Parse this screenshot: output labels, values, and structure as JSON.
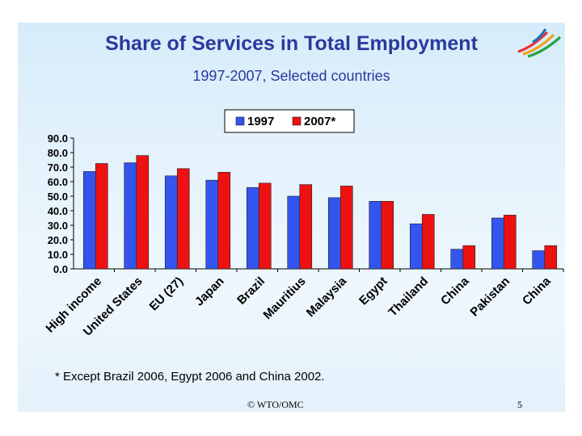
{
  "slide": {
    "title": "Share of Services in Total Employment",
    "subtitle": "1997-2007, Selected countries",
    "footnote": "* Except Brazil 2006, Egypt 2006 and China 2002.",
    "copyright": "© WTO/OMC",
    "page_number": "5",
    "logo_icon": "wto-logo-icon"
  },
  "colors": {
    "series_1997": "#3355ee",
    "series_2007": "#ee1111",
    "title": "#2a3a9c"
  },
  "chart_data": {
    "type": "bar",
    "title": "Share of Services in Total Employment",
    "xlabel": "",
    "ylabel": "",
    "ylim": [
      0,
      90
    ],
    "ytick_labels": [
      "0.0",
      "10.0",
      "20.0",
      "30.0",
      "40.0",
      "50.0",
      "60.0",
      "70.0",
      "80.0",
      "90.0"
    ],
    "legend_position": "top-center",
    "categories": [
      "High income",
      "United States",
      "EU (27)",
      "Japan",
      "Brazil",
      "Mauritius",
      "Malaysia",
      "Egypt",
      "Thailand",
      "China",
      "Pakistan",
      "China"
    ],
    "series": [
      {
        "name": "1997",
        "values": [
          67,
          73,
          64,
          61,
          56,
          50,
          49,
          46.5,
          31,
          13.5,
          35,
          12.5
        ]
      },
      {
        "name": "2007*",
        "values": [
          72.5,
          78,
          69,
          66.5,
          59,
          58,
          57,
          46.5,
          37.5,
          16,
          37,
          16
        ]
      }
    ]
  }
}
